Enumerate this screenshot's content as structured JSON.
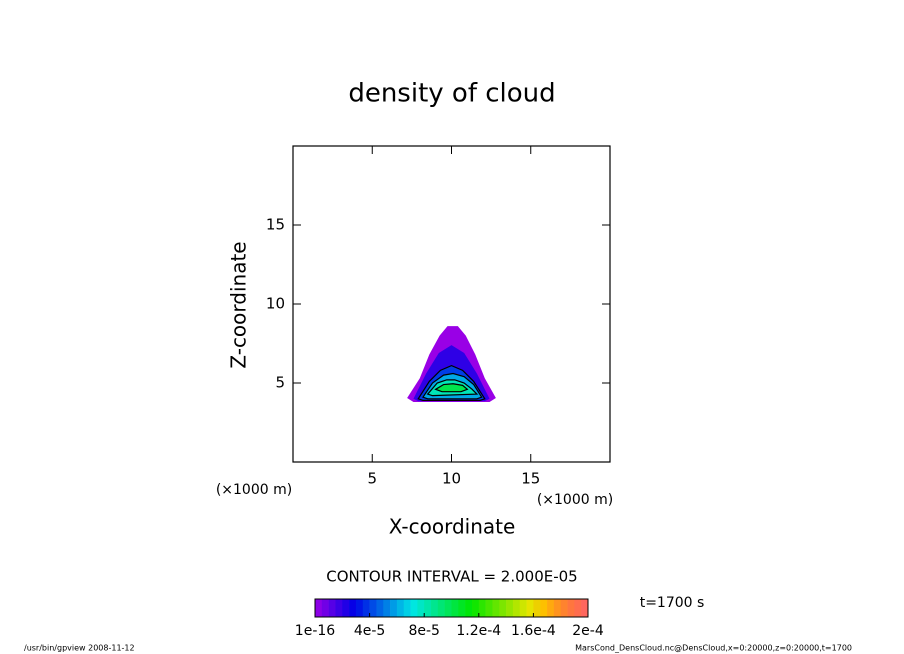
{
  "chart_data": {
    "type": "contour",
    "title": "density of cloud",
    "x_label": "X-coordinate",
    "y_label": "Z-coordinate",
    "x_units": "(×1000 m)",
    "y_units": "(×1000 m)",
    "xlim": [
      0,
      20
    ],
    "ylim": [
      0,
      20
    ],
    "xticks": [
      5,
      10,
      15
    ],
    "yticks": [
      5,
      10,
      15
    ],
    "contour_interval": "CONTOUR INTERVAL = 2.000E-05",
    "colorbar": {
      "lim": [
        1e-16,
        0.0002
      ],
      "ticks": [
        {
          "value": 1e-16,
          "label": "1e-16"
        },
        {
          "value": 4e-05,
          "label": "4e-5"
        },
        {
          "value": 8e-05,
          "label": "8e-5"
        },
        {
          "value": 0.00012,
          "label": "1.2e-4"
        },
        {
          "value": 0.00016,
          "label": "1.6e-4"
        },
        {
          "value": 0.0002,
          "label": "2e-4"
        }
      ]
    },
    "contours": [
      {
        "level": 1e-16,
        "x": [
          7.2,
          8.0,
          8.6,
          9.25,
          9.75,
          10.4,
          10.9,
          11.5,
          12.1,
          12.8,
          12.4,
          7.6
        ],
        "z": [
          4.05,
          5.3,
          6.8,
          8.0,
          8.6,
          8.6,
          8.0,
          6.8,
          5.3,
          4.05,
          3.8,
          3.8
        ]
      },
      {
        "level": 2e-05,
        "x": [
          7.6,
          8.4,
          9.2,
          10.0,
          10.8,
          11.6,
          12.4,
          12.1,
          7.9
        ],
        "z": [
          4.0,
          5.6,
          6.9,
          7.4,
          6.9,
          5.6,
          4.0,
          3.85,
          3.85
        ]
      },
      {
        "level": 4e-05,
        "x": [
          7.9,
          8.6,
          9.3,
          10.0,
          10.7,
          11.4,
          12.1,
          11.8,
          8.2
        ],
        "z": [
          4.0,
          5.1,
          5.8,
          6.1,
          5.8,
          5.1,
          4.0,
          3.9,
          3.9
        ]
      },
      {
        "level": 6e-05,
        "x": [
          8.2,
          8.8,
          9.5,
          10.1,
          10.8,
          11.4,
          11.9,
          11.6,
          8.5
        ],
        "z": [
          4.1,
          5.0,
          5.5,
          5.6,
          5.4,
          4.9,
          4.1,
          4.0,
          4.0
        ]
      },
      {
        "level": 8e-05,
        "x": [
          8.5,
          9.1,
          9.7,
          10.2,
          10.8,
          11.3,
          11.6,
          8.8
        ],
        "z": [
          4.3,
          5.0,
          5.2,
          5.2,
          5.0,
          4.6,
          4.3,
          4.2
        ]
      },
      {
        "level": 0.0001,
        "x": [
          9.0,
          9.5,
          10.1,
          10.7,
          11.0,
          10.6,
          9.4
        ],
        "z": [
          4.6,
          4.9,
          4.95,
          4.85,
          4.6,
          4.45,
          4.45
        ]
      }
    ],
    "time_label": "t=1700 s",
    "footer_left": "/usr/bin/gpview   2008-11-12",
    "footer_right": "MarsCond_DensCloud.nc@DensCloud,x=0:20000,z=0:20000,t=1700"
  }
}
